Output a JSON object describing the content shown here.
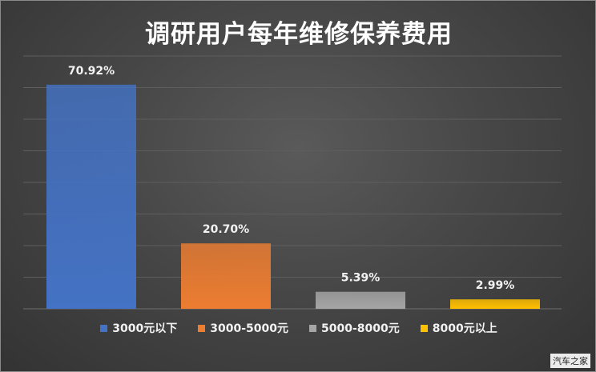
{
  "chart_data": {
    "type": "bar",
    "title": "调研用户每年维修保养费用",
    "xlabel": "",
    "ylabel": "",
    "ylim": [
      0,
      80
    ],
    "grid": true,
    "legend": "bottom",
    "categories": [
      "3000元以下",
      "3000-5000元",
      "5000-8000元",
      "8000元以上"
    ],
    "values": [
      70.92,
      20.7,
      5.39,
      2.99
    ],
    "data_labels": [
      "70.92%",
      "20.70%",
      "5.39%",
      "2.99%"
    ],
    "colors": [
      "#4472C4",
      "#ED7D31",
      "#A5A5A5",
      "#FFC000"
    ]
  },
  "watermark": "汽车之家"
}
